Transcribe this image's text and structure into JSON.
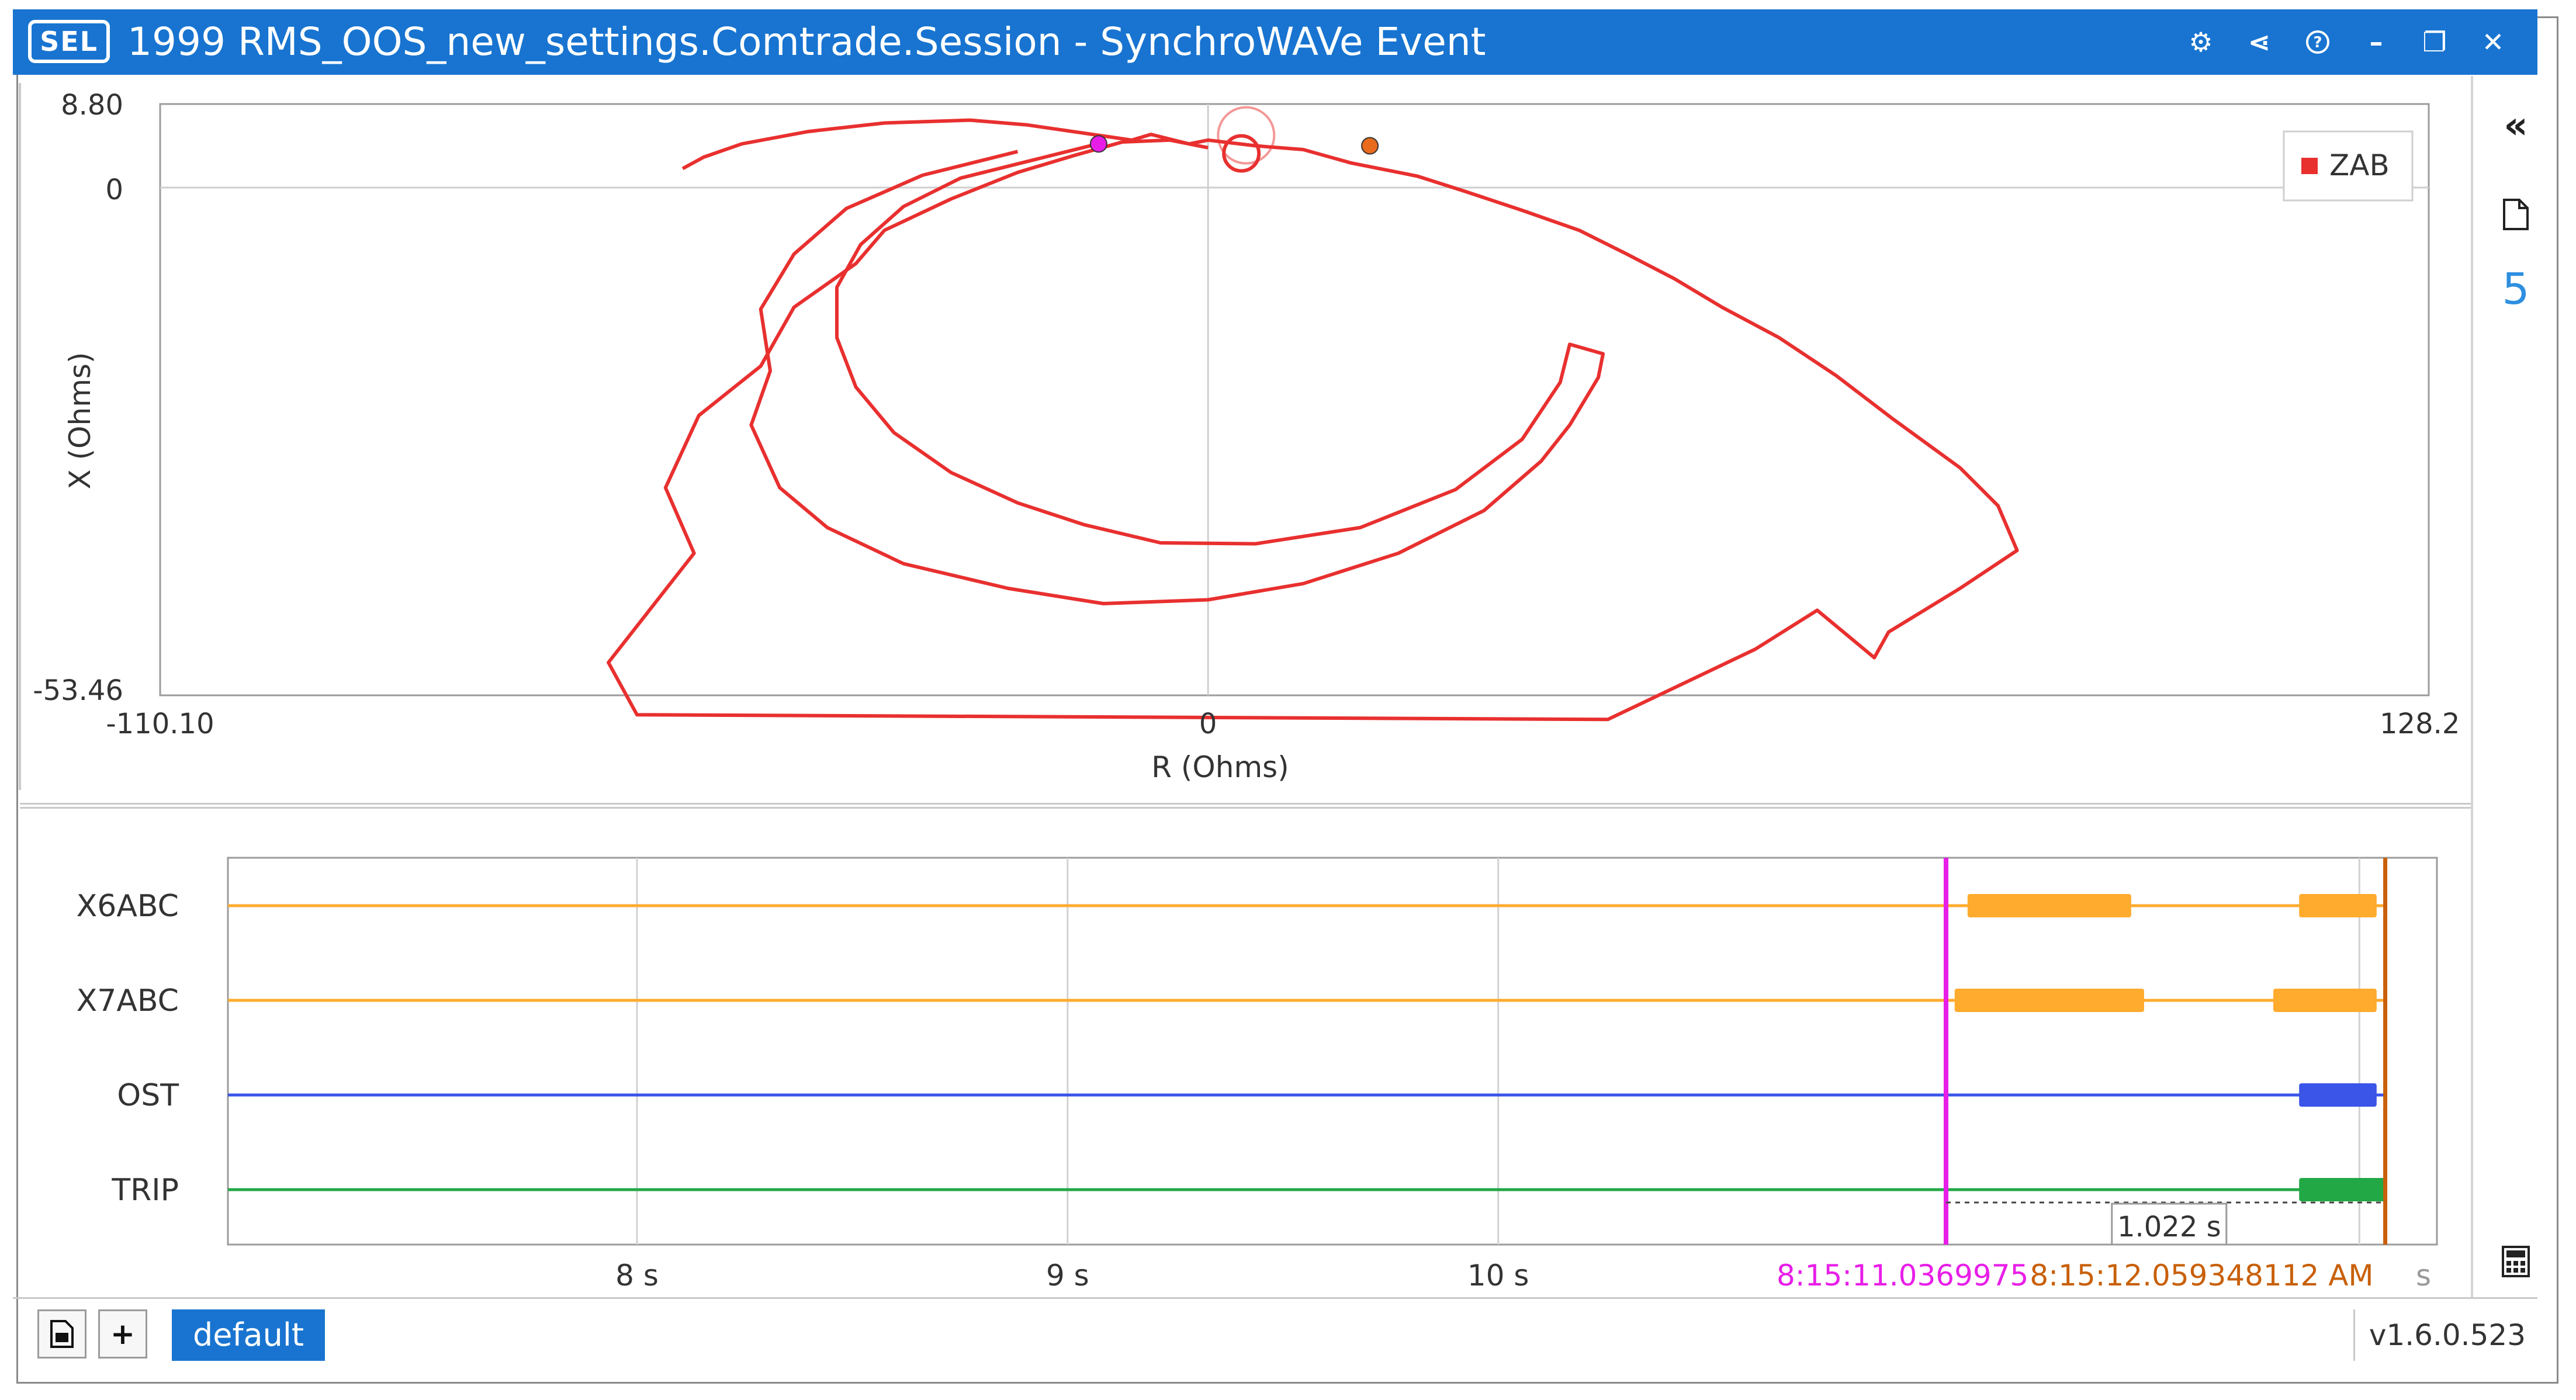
{
  "window": {
    "logo_text": "SEL",
    "title": "1999 RMS_OOS_new_settings.Comtrade.Session - SynchroWAVe Event",
    "icons": [
      "gear-icon",
      "share-icon",
      "help-icon",
      "minimize-icon",
      "restore-icon",
      "close-icon"
    ],
    "icon_glyphs": [
      "⚙",
      "⋖",
      "?",
      "–",
      "❐",
      "✕"
    ]
  },
  "impedance_plot": {
    "x_label": "R (Ohms)",
    "y_label": "X (Ohms)",
    "x_ticks": [
      "-110.10",
      "0",
      "128.25"
    ],
    "y_ticks": [
      "8.80",
      "0",
      "-53.46"
    ],
    "legend": "ZAB",
    "legend_color": "#e8302f"
  },
  "waveform": {
    "channels": [
      {
        "name": "X6ABC",
        "color": "#ffab2e"
      },
      {
        "name": "X7ABC",
        "color": "#ffab2e"
      },
      {
        "name": "OST",
        "color": "#3b55e8"
      },
      {
        "name": "TRIP",
        "color": "#22a845"
      }
    ],
    "time_ticks": [
      "8 s",
      "9 s",
      "10 s",
      "s"
    ],
    "cursor1_label": "8:15:11.0369975",
    "cursor1_color": "#e81ee8",
    "cursor2_label": "8:15:12.059348112 AM",
    "cursor2_color": "#c8600a",
    "delta_label": "1.022 s"
  },
  "right_rail": {
    "collapse_glyph": "«",
    "document_icon": "document-icon",
    "count": "5",
    "calculator_icon": "calculator-icon"
  },
  "bottom_bar": {
    "add_glyph": "+",
    "tab_label": "default",
    "version": "v1.6.0.523"
  },
  "chart_data": {
    "type": "scatter",
    "title": "",
    "xlabel": "R (Ohms)",
    "ylabel": "X (Ohms)",
    "xlim": [
      -110.1,
      128.25
    ],
    "ylim": [
      -53.46,
      8.8
    ],
    "legend": "top-right",
    "grid": false,
    "series": [
      {
        "name": "ZAB",
        "color": "#e8302f",
        "points": [
          [
            -55.2,
            2.0
          ],
          [
            -53.0,
            3.2
          ],
          [
            -49.0,
            4.6
          ],
          [
            -42.0,
            5.9
          ],
          [
            -34.0,
            6.8
          ],
          [
            -25.0,
            7.1
          ],
          [
            -19.0,
            6.6
          ],
          [
            -8.0,
            5.0
          ],
          [
            -6.0,
            5.6
          ],
          [
            -2.0,
            4.6
          ],
          [
            0.0,
            5.0
          ],
          [
            5.0,
            4.4
          ],
          [
            10.0,
            4.0
          ],
          [
            15.0,
            2.6
          ],
          [
            22.0,
            1.2
          ],
          [
            27.0,
            -0.4
          ],
          [
            33.0,
            -2.4
          ],
          [
            39.0,
            -4.5
          ],
          [
            44.0,
            -7.0
          ],
          [
            49.0,
            -9.6
          ],
          [
            54.0,
            -12.6
          ],
          [
            60.0,
            -15.8
          ],
          [
            66.0,
            -19.8
          ],
          [
            72.0,
            -24.4
          ],
          [
            79.0,
            -29.5
          ],
          [
            83.0,
            -33.5
          ],
          [
            85.0,
            -38.2
          ],
          [
            79.0,
            -42.2
          ],
          [
            71.5,
            -46.8
          ],
          [
            70.0,
            -49.5
          ],
          [
            64.0,
            -44.5
          ],
          [
            57.5,
            -48.6
          ],
          [
            42.0,
            -56.0
          ],
          [
            -60.0,
            -55.5
          ],
          [
            -63.0,
            -50.0
          ],
          [
            -54.0,
            -38.5
          ],
          [
            -57.0,
            -31.6
          ],
          [
            -53.5,
            -24.0
          ],
          [
            -47.0,
            -18.8
          ],
          [
            -43.5,
            -12.6
          ],
          [
            -37.0,
            -8.0
          ],
          [
            -34.0,
            -4.5
          ],
          [
            -27.0,
            -1.2
          ],
          [
            -20.0,
            1.6
          ],
          [
            -14.0,
            3.4
          ],
          [
            -9.0,
            4.8
          ],
          [
            -4.0,
            5.0
          ],
          [
            0.0,
            4.2
          ]
        ],
        "inner_spiral": [
          [
            -20.0,
            3.8
          ],
          [
            -30.0,
            1.3
          ],
          [
            -38.0,
            -2.2
          ],
          [
            -43.5,
            -7.0
          ],
          [
            -47.0,
            -12.8
          ],
          [
            -46.0,
            -19.3
          ],
          [
            -48.0,
            -25.0
          ],
          [
            -45.0,
            -31.6
          ],
          [
            -40.0,
            -35.8
          ],
          [
            -32.0,
            -39.6
          ],
          [
            -21.0,
            -42.2
          ],
          [
            -11.0,
            -43.8
          ],
          [
            0.0,
            -43.4
          ],
          [
            10.0,
            -41.7
          ],
          [
            20.0,
            -38.5
          ],
          [
            29.0,
            -34.0
          ],
          [
            35.0,
            -28.8
          ],
          [
            38.0,
            -25.0
          ],
          [
            41.0,
            -20.0
          ],
          [
            41.5,
            -17.5
          ],
          [
            38.0,
            -16.5
          ],
          [
            37.0,
            -20.5
          ],
          [
            33.0,
            -26.5
          ],
          [
            26.0,
            -31.8
          ],
          [
            16.0,
            -35.8
          ],
          [
            5.0,
            -37.5
          ],
          [
            -5.0,
            -37.4
          ],
          [
            -13.0,
            -35.5
          ],
          [
            -20.0,
            -33.2
          ],
          [
            -27.0,
            -30.0
          ],
          [
            -33.0,
            -25.8
          ],
          [
            -37.0,
            -21.0
          ],
          [
            -39.0,
            -15.8
          ],
          [
            -39.0,
            -10.5
          ],
          [
            -36.5,
            -6.0
          ],
          [
            -32.0,
            -2.0
          ],
          [
            -26.0,
            1.0
          ],
          [
            -18.0,
            3.0
          ],
          [
            -12.0,
            4.5
          ]
        ]
      }
    ],
    "markers": [
      {
        "name": "cursor-1-marker",
        "x": -11.5,
        "y": 4.6,
        "color": "#e81ee8"
      },
      {
        "name": "cursor-2-marker",
        "x": 17.0,
        "y": 4.4,
        "color": "#e86b1e"
      },
      {
        "name": "current-position-ring",
        "x": 3.5,
        "y": 3.6,
        "color": "#e8302f"
      },
      {
        "name": "current-position-ring-outer",
        "x": 4.0,
        "y": 5.5,
        "color": "#e8302f"
      }
    ]
  },
  "waveform_data": {
    "type": "digital-channels",
    "x_unit": "s",
    "xlim": [
      7.05,
      12.18
    ],
    "x_tick_values": [
      8,
      9,
      10,
      12
    ],
    "cursor1_time": 11.04,
    "cursor2_time": 12.06,
    "pulses": {
      "X6ABC": [
        [
          11.09,
          11.47
        ],
        [
          11.86,
          12.04
        ]
      ],
      "X7ABC": [
        [
          11.06,
          11.5
        ],
        [
          11.8,
          12.04
        ]
      ],
      "OST": [
        [
          11.86,
          12.04
        ]
      ],
      "TRIP": [
        [
          11.86,
          12.06
        ]
      ]
    }
  }
}
